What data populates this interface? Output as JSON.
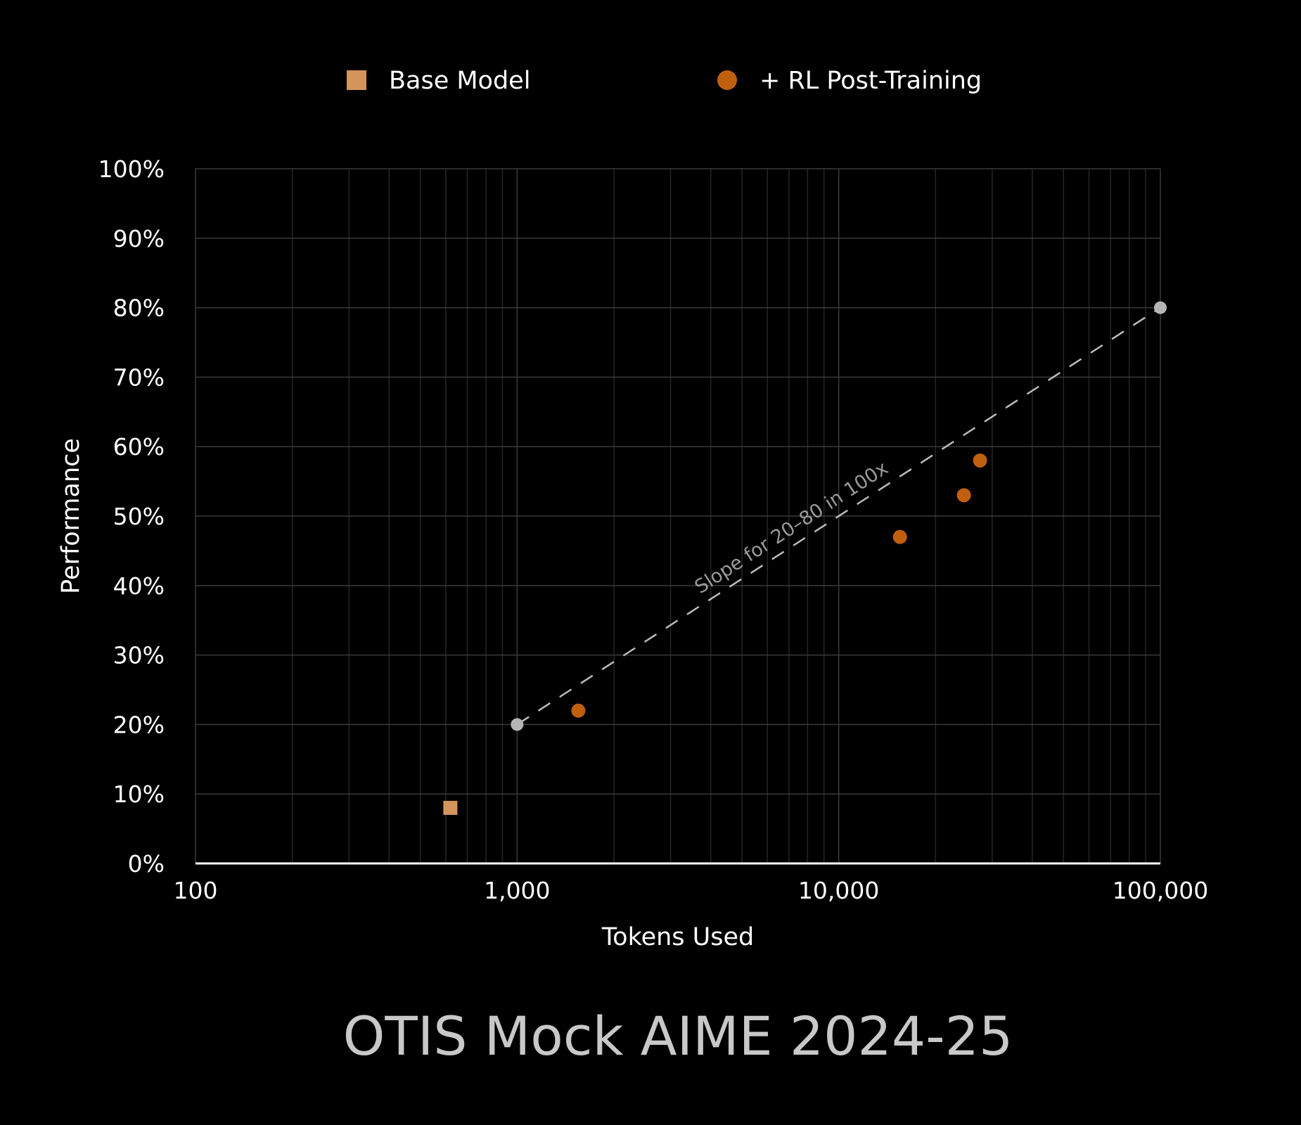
{
  "chart_data": {
    "type": "scatter",
    "title": "OTIS Mock AIME 2024-25",
    "xlabel": "Tokens Used",
    "ylabel": "Performance",
    "xscale": "log",
    "xlim": [
      100,
      100000
    ],
    "ylim": [
      0,
      100
    ],
    "x_ticks": [
      100,
      1000,
      10000,
      100000
    ],
    "x_tick_labels": [
      "100",
      "1,000",
      "10,000",
      "100,000"
    ],
    "y_ticks": [
      0,
      10,
      20,
      30,
      40,
      50,
      60,
      70,
      80,
      90,
      100
    ],
    "y_tick_labels": [
      "0%",
      "10%",
      "20%",
      "30%",
      "40%",
      "50%",
      "60%",
      "70%",
      "80%",
      "90%",
      "100%"
    ],
    "grid": true,
    "legend_position": "top",
    "series": [
      {
        "name": "Base Model",
        "marker": "square",
        "color": "#d4955a",
        "points": [
          {
            "x": 620,
            "y": 8
          }
        ]
      },
      {
        "name": "+ RL Post-Training",
        "marker": "circle",
        "color": "#c0600e",
        "points": [
          {
            "x": 1550,
            "y": 22
          },
          {
            "x": 15500,
            "y": 47
          },
          {
            "x": 24500,
            "y": 53
          },
          {
            "x": 27500,
            "y": 58
          }
        ]
      }
    ],
    "reference_line": {
      "label": "Slope for 20–80 in 100x",
      "style": "dashed",
      "color": "#bbbbbb",
      "start": {
        "x": 1000,
        "y": 20
      },
      "end": {
        "x": 100000,
        "y": 80
      }
    }
  }
}
